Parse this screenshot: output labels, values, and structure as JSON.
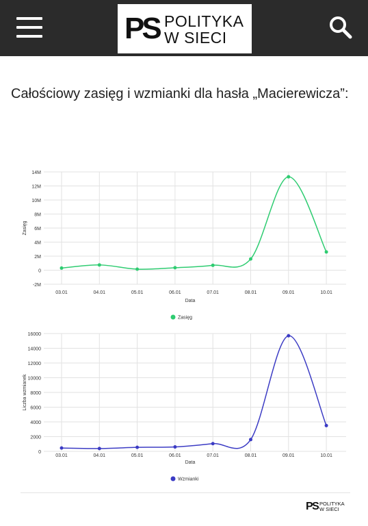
{
  "header": {
    "menu_icon": "hamburger-menu-icon",
    "logo_mark": "PS",
    "logo_line1": "POLITYKA",
    "logo_line2": "W SIECI",
    "search_icon": "search-icon",
    "background": "#2b2b2b"
  },
  "article": {
    "headline": "Całościowy zasięg i wzmianki dla hasła „Macierewicza”:"
  },
  "chart_data": [
    {
      "type": "line",
      "x": [
        "03.01",
        "04.01",
        "05.01",
        "06.01",
        "07.01",
        "08.01",
        "09.01",
        "10.01"
      ],
      "series": [
        {
          "name": "Zasięg",
          "color": "#2ecc71",
          "values": [
            300000,
            750000,
            150000,
            350000,
            700000,
            1600000,
            13300000,
            2600000
          ]
        }
      ],
      "xlabel": "Data",
      "ylabel": "Zasięg",
      "ylim": [
        -2000000,
        14000000
      ],
      "yticks": [
        -2000000,
        0,
        2000000,
        4000000,
        6000000,
        8000000,
        10000000,
        12000000,
        14000000
      ],
      "ytick_labels": [
        "-2M",
        "0",
        "2M",
        "4M",
        "6M",
        "8M",
        "10M",
        "12M",
        "14M"
      ],
      "grid": true,
      "legend": "bottom-center"
    },
    {
      "type": "line",
      "x": [
        "03.01",
        "04.01",
        "05.01",
        "06.01",
        "07.01",
        "08.01",
        "09.01",
        "10.01"
      ],
      "series": [
        {
          "name": "Wzmianki",
          "color": "#3b3bc4",
          "values": [
            450,
            380,
            550,
            600,
            1050,
            1600,
            15700,
            3500
          ]
        }
      ],
      "xlabel": "Data",
      "ylabel": "Liczba wzmianek",
      "ylim": [
        0,
        16000
      ],
      "yticks": [
        0,
        2000,
        4000,
        6000,
        8000,
        10000,
        12000,
        14000,
        16000
      ],
      "ytick_labels": [
        "0",
        "2000",
        "4000",
        "6000",
        "8000",
        "10000",
        "12000",
        "14000",
        "16000"
      ],
      "grid": true,
      "legend": "bottom-center"
    }
  ],
  "footer": {
    "logo_mark": "PS",
    "logo_line1": "POLITYKA",
    "logo_line2": "W SIECI"
  }
}
